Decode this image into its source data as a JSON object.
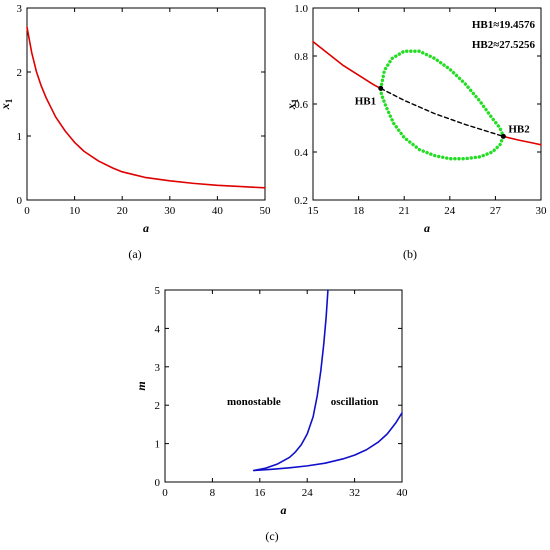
{
  "chart_data": [
    {
      "id": "a",
      "type": "line",
      "panel_label": "(a)",
      "xlabel": "a",
      "ylabel": "x",
      "ylabel_sub": "1",
      "xlim": [
        0,
        50
      ],
      "ylim": [
        0,
        3
      ],
      "xticks": [
        0,
        10,
        20,
        30,
        40,
        50
      ],
      "yticks": [
        0,
        1,
        2,
        3
      ],
      "series": [
        {
          "color": "#e00000",
          "style": "solid",
          "x": [
            0,
            1,
            2,
            3,
            4,
            5,
            6,
            8,
            10,
            12,
            15,
            18,
            20,
            25,
            30,
            35,
            40,
            45,
            50
          ],
          "y": [
            2.7,
            2.3,
            2.0,
            1.78,
            1.6,
            1.45,
            1.3,
            1.08,
            0.9,
            0.76,
            0.61,
            0.5,
            0.44,
            0.35,
            0.3,
            0.26,
            0.23,
            0.21,
            0.19
          ]
        }
      ]
    },
    {
      "id": "b",
      "type": "line",
      "panel_label": "(b)",
      "xlabel": "a",
      "ylabel": "x",
      "ylabel_sub": "1",
      "xlim": [
        15,
        30
      ],
      "ylim": [
        0.2,
        1.0
      ],
      "xticks": [
        15,
        18,
        21,
        24,
        27,
        30
      ],
      "yticks": [
        0.2,
        0.4,
        0.6,
        0.8,
        1.0
      ],
      "ytick_labels": [
        "0.2",
        "0.4",
        "0.6",
        "0.8",
        "1.0"
      ],
      "series": [
        {
          "color": "#e00000",
          "style": "solid",
          "x": [
            15,
            16,
            17,
            18,
            19,
            19.4576
          ],
          "y": [
            0.86,
            0.81,
            0.76,
            0.72,
            0.68,
            0.665
          ]
        },
        {
          "color": "#000000",
          "style": "dashed",
          "x": [
            19.4576,
            21,
            23,
            25,
            27.5256
          ],
          "y": [
            0.665,
            0.615,
            0.56,
            0.515,
            0.465
          ]
        },
        {
          "color": "#e00000",
          "style": "solid",
          "x": [
            27.5256,
            28.5,
            29.5,
            30
          ],
          "y": [
            0.465,
            0.45,
            0.437,
            0.43
          ]
        },
        {
          "color": "#22dd22",
          "style": "dotted",
          "closed": true,
          "x": [
            19.4576,
            19.7,
            20.2,
            21.0,
            22.0,
            23.0,
            24.0,
            25.0,
            26.0,
            26.8,
            27.3,
            27.5256,
            27.3,
            26.8,
            26.0,
            25.0,
            24.0,
            23.0,
            22.0,
            21.0,
            20.3,
            19.8,
            19.5
          ],
          "y": [
            0.665,
            0.74,
            0.79,
            0.82,
            0.82,
            0.79,
            0.745,
            0.685,
            0.61,
            0.54,
            0.5,
            0.465,
            0.43,
            0.4,
            0.38,
            0.372,
            0.372,
            0.385,
            0.41,
            0.46,
            0.52,
            0.59,
            0.64
          ]
        }
      ],
      "points": [
        {
          "name": "HB1",
          "x": 19.4576,
          "y": 0.665,
          "label": "HB1"
        },
        {
          "name": "HB2",
          "x": 27.5256,
          "y": 0.465,
          "label": "HB2"
        }
      ],
      "annotations": [
        "HB1≈19.4576",
        "HB2≈27.5256"
      ]
    },
    {
      "id": "c",
      "type": "line",
      "panel_label": "(c)",
      "xlabel": "a",
      "ylabel": "m",
      "xlim": [
        0,
        40
      ],
      "ylim": [
        0,
        5
      ],
      "xticks": [
        0,
        8,
        16,
        24,
        32,
        40
      ],
      "yticks": [
        0,
        1,
        2,
        3,
        4,
        5
      ],
      "series": [
        {
          "color": "#1010cc",
          "style": "solid",
          "x": [
            15,
            17,
            19,
            21,
            22,
            23,
            24,
            25,
            25.7,
            26.3,
            26.8,
            27.2,
            27.5
          ],
          "y": [
            0.3,
            0.36,
            0.47,
            0.64,
            0.78,
            0.97,
            1.25,
            1.7,
            2.25,
            2.9,
            3.6,
            4.3,
            5.0
          ]
        },
        {
          "color": "#1010cc",
          "style": "solid",
          "x": [
            15,
            18,
            21,
            24,
            27,
            30,
            32,
            34,
            36,
            37.5,
            39,
            40
          ],
          "y": [
            0.3,
            0.33,
            0.37,
            0.42,
            0.49,
            0.6,
            0.7,
            0.84,
            1.04,
            1.25,
            1.55,
            1.8
          ]
        }
      ],
      "regions": [
        "monostable",
        "oscillation"
      ]
    }
  ]
}
